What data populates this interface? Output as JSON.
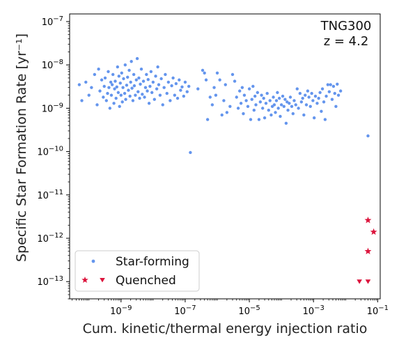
{
  "chart_data": {
    "type": "scatter",
    "xlabel": "Cum. kinetic/thermal energy injection ratio",
    "ylabel": "Specific Star Formation Rate [yr⁻¹]",
    "x_scale": "log",
    "y_scale": "log",
    "xlim": [
      2.5e-11,
      0.12
    ],
    "ylim": [
      4e-14,
      1.5e-07
    ],
    "x_ticks": [
      {
        "value": 1e-09,
        "mantissa": "10",
        "exp": "−9"
      },
      {
        "value": 1e-07,
        "mantissa": "10",
        "exp": "−7"
      },
      {
        "value": 1e-05,
        "mantissa": "10",
        "exp": "−5"
      },
      {
        "value": 0.001,
        "mantissa": "10",
        "exp": "−3"
      },
      {
        "value": 0.1,
        "mantissa": "10",
        "exp": "−1"
      }
    ],
    "y_ticks": [
      {
        "value": 1e-13,
        "mantissa": "10",
        "exp": "−13"
      },
      {
        "value": 1e-12,
        "mantissa": "10",
        "exp": "−12"
      },
      {
        "value": 1e-11,
        "mantissa": "10",
        "exp": "−11"
      },
      {
        "value": 1e-10,
        "mantissa": "10",
        "exp": "−10"
      },
      {
        "value": 1e-09,
        "mantissa": "10",
        "exp": "−9"
      },
      {
        "value": 1e-08,
        "mantissa": "10",
        "exp": "−8"
      },
      {
        "value": 1e-07,
        "mantissa": "10",
        "exp": "−7"
      }
    ],
    "annotation_lines": [
      "TNG300",
      "z = 4.2"
    ],
    "legend_position": "lower-left",
    "grid": false,
    "colors": {
      "star_forming": "#6495ed",
      "quenched": "#dc143c"
    },
    "series": [
      {
        "name": "Star-forming",
        "marker": "dot",
        "points": [
          [
            5e-11,
            3.5e-09
          ],
          [
            6e-11,
            1.5e-09
          ],
          [
            8e-11,
            4e-09
          ],
          [
            1e-10,
            2e-09
          ],
          [
            1.2e-10,
            3e-09
          ],
          [
            1.5e-10,
            6e-09
          ],
          [
            1.8e-10,
            1.2e-09
          ],
          [
            2e-10,
            8e-09
          ],
          [
            2.2e-10,
            2.5e-09
          ],
          [
            2.5e-10,
            4.5e-09
          ],
          [
            2.8e-10,
            1.8e-09
          ],
          [
            3e-10,
            3.2e-09
          ],
          [
            3.2e-10,
            5e-09
          ],
          [
            3.5e-10,
            1.5e-09
          ],
          [
            3.8e-10,
            2.2e-09
          ],
          [
            4e-10,
            7e-09
          ],
          [
            4.2e-10,
            3e-09
          ],
          [
            4.5e-10,
            1e-09
          ],
          [
            4.8e-10,
            4e-09
          ],
          [
            5e-10,
            2e-09
          ],
          [
            5.3e-10,
            3.5e-09
          ],
          [
            5.6e-10,
            6e-09
          ],
          [
            6e-10,
            1.3e-09
          ],
          [
            6.3e-10,
            2.8e-09
          ],
          [
            6.6e-10,
            4.2e-09
          ],
          [
            7e-10,
            1.7e-09
          ],
          [
            7.4e-10,
            3.1e-09
          ],
          [
            7.8e-10,
            9e-09
          ],
          [
            8.2e-10,
            2.3e-09
          ],
          [
            8.6e-10,
            5.5e-09
          ],
          [
            9e-10,
            1.1e-09
          ],
          [
            9.5e-10,
            3.8e-09
          ],
          [
            1e-09,
            2e-09
          ],
          [
            1.05e-09,
            6.5e-09
          ],
          [
            1.1e-09,
            1.4e-09
          ],
          [
            1.15e-09,
            3e-09
          ],
          [
            1.2e-09,
            4.8e-09
          ],
          [
            1.3e-09,
            2.2e-09
          ],
          [
            1.35e-09,
            1e-08
          ],
          [
            1.4e-09,
            1.6e-09
          ],
          [
            1.5e-09,
            3.4e-09
          ],
          [
            1.6e-09,
            5.2e-09
          ],
          [
            1.7e-09,
            2.6e-09
          ],
          [
            1.8e-09,
            7.5e-09
          ],
          [
            1.9e-09,
            1.9e-09
          ],
          [
            2e-09,
            4e-09
          ],
          [
            2.1e-09,
            1.2e-08
          ],
          [
            2.2e-09,
            2.9e-09
          ],
          [
            2.35e-09,
            1.5e-09
          ],
          [
            2.5e-09,
            6e-09
          ],
          [
            2.6e-09,
            3.3e-09
          ],
          [
            2.8e-09,
            2e-09
          ],
          [
            3e-09,
            4.5e-09
          ],
          [
            3.2e-09,
            1.4e-08
          ],
          [
            3.4e-09,
            2.4e-09
          ],
          [
            3.6e-09,
            5e-09
          ],
          [
            3.8e-09,
            1.7e-09
          ],
          [
            4e-09,
            3.6e-09
          ],
          [
            4.3e-09,
            8e-09
          ],
          [
            4.6e-09,
            2.1e-09
          ],
          [
            5e-09,
            4.2e-09
          ],
          [
            5.4e-09,
            1.8e-09
          ],
          [
            5.8e-09,
            3e-09
          ],
          [
            6.2e-09,
            6e-09
          ],
          [
            6.6e-09,
            2.5e-09
          ],
          [
            7e-09,
            4.6e-09
          ],
          [
            7.5e-09,
            1.3e-09
          ],
          [
            8e-09,
            3.2e-09
          ],
          [
            8.6e-09,
            7e-09
          ],
          [
            9.2e-09,
            2.3e-09
          ],
          [
            1e-08,
            4e-09
          ],
          [
            1.1e-08,
            1.6e-09
          ],
          [
            1.2e-08,
            5.5e-09
          ],
          [
            1.3e-08,
            2.8e-09
          ],
          [
            1.4e-08,
            9e-09
          ],
          [
            1.5e-08,
            3.5e-09
          ],
          [
            1.65e-08,
            2e-09
          ],
          [
            1.8e-08,
            4.8e-09
          ],
          [
            2e-08,
            1.2e-09
          ],
          [
            2.2e-08,
            3e-09
          ],
          [
            2.4e-08,
            6e-09
          ],
          [
            2.7e-08,
            2.2e-09
          ],
          [
            3e-08,
            4e-09
          ],
          [
            3.4e-08,
            1.5e-09
          ],
          [
            3.8e-08,
            3.3e-09
          ],
          [
            4.2e-08,
            5e-09
          ],
          [
            4.7e-08,
            2e-09
          ],
          [
            5.2e-08,
            3.7e-09
          ],
          [
            5.8e-08,
            1.7e-09
          ],
          [
            6.5e-08,
            4.5e-09
          ],
          [
            7.2e-08,
            2.6e-09
          ],
          [
            8e-08,
            3.1e-09
          ],
          [
            9e-08,
            1.9e-09
          ],
          [
            1e-07,
            4e-09
          ],
          [
            1.15e-07,
            2.4e-09
          ],
          [
            1.3e-07,
            3.2e-09
          ],
          [
            1.45e-07,
            9.5e-11
          ],
          [
            2.5e-07,
            2.8e-09
          ],
          [
            3.5e-07,
            7.5e-09
          ],
          [
            4e-07,
            6.5e-09
          ],
          [
            4.5e-07,
            4.5e-09
          ],
          [
            5e-07,
            5.5e-10
          ],
          [
            6e-07,
            1.8e-09
          ],
          [
            7e-07,
            1.2e-09
          ],
          [
            8e-07,
            3e-09
          ],
          [
            9e-07,
            2e-09
          ],
          [
            1e-06,
            6.5e-09
          ],
          [
            1.2e-06,
            4.5e-09
          ],
          [
            1.4e-06,
            7e-10
          ],
          [
            1.6e-06,
            1.5e-09
          ],
          [
            1.8e-06,
            3.5e-09
          ],
          [
            2e-06,
            8e-10
          ],
          [
            2.5e-06,
            1.1e-09
          ],
          [
            3e-06,
            6e-09
          ],
          [
            3.5e-06,
            4.2e-09
          ],
          [
            4e-06,
            1.8e-09
          ],
          [
            4.5e-06,
            1e-09
          ],
          [
            5e-06,
            2.5e-09
          ],
          [
            5.5e-06,
            1.3e-09
          ],
          [
            6e-06,
            3e-09
          ],
          [
            6.5e-06,
            7.5e-10
          ],
          [
            7e-06,
            2e-09
          ],
          [
            8e-06,
            1.5e-09
          ],
          [
            9e-06,
            1.1e-09
          ],
          [
            1e-05,
            2.8e-09
          ],
          [
            1.1e-05,
            5.5e-10
          ],
          [
            1.2e-05,
            1.6e-09
          ],
          [
            1.3e-05,
            3.2e-09
          ],
          [
            1.4e-05,
            9e-10
          ],
          [
            1.5e-05,
            1.9e-09
          ],
          [
            1.6e-05,
            1.2e-09
          ],
          [
            1.8e-05,
            2.3e-09
          ],
          [
            2e-05,
            5.5e-10
          ],
          [
            2.2e-05,
            1.4e-09
          ],
          [
            2.4e-05,
            2e-09
          ],
          [
            2.6e-05,
            1e-09
          ],
          [
            2.8e-05,
            1.7e-09
          ],
          [
            3e-05,
            6e-10
          ],
          [
            3.3e-05,
            1.3e-09
          ],
          [
            3.6e-05,
            2.2e-09
          ],
          [
            4e-05,
            9e-10
          ],
          [
            4.4e-05,
            1.5e-09
          ],
          [
            4.8e-05,
            7e-10
          ],
          [
            5.2e-05,
            1.1e-09
          ],
          [
            5.6e-05,
            1.8e-09
          ],
          [
            6e-05,
            1.2e-09
          ],
          [
            6.5e-05,
            8e-10
          ],
          [
            7e-05,
            1.5e-09
          ],
          [
            7.5e-05,
            2.3e-09
          ],
          [
            8e-05,
            1e-09
          ],
          [
            8.6e-05,
            1.7e-09
          ],
          [
            9.2e-05,
            6.5e-10
          ],
          [
            0.0001,
            1.2e-09
          ],
          [
            0.00011,
            1.9e-09
          ],
          [
            0.00012,
            1.1e-09
          ],
          [
            0.00013,
            1.6e-09
          ],
          [
            0.00014,
            4.5e-10
          ],
          [
            0.00015,
            1.4e-09
          ],
          [
            0.00016,
            9e-10
          ],
          [
            0.000175,
            1.3e-09
          ],
          [
            0.00019,
            1.8e-09
          ],
          [
            0.00021,
            1.1e-09
          ],
          [
            0.00023,
            7.5e-10
          ],
          [
            0.00025,
            1.5e-09
          ],
          [
            0.00028,
            1.2e-09
          ],
          [
            0.00031,
            2.8e-09
          ],
          [
            0.00034,
            1e-09
          ],
          [
            0.00038,
            2.2e-09
          ],
          [
            0.00042,
            1.4e-09
          ],
          [
            0.00046,
            1.7e-09
          ],
          [
            0.0005,
            7e-10
          ],
          [
            0.00055,
            2e-09
          ],
          [
            0.0006,
            1.2e-09
          ],
          [
            0.00066,
            2.5e-09
          ],
          [
            0.00072,
            1.8e-09
          ],
          [
            0.0008,
            1.1e-09
          ],
          [
            0.00088,
            2.2e-09
          ],
          [
            0.00096,
            1.5e-09
          ],
          [
            0.00105,
            6e-10
          ],
          [
            0.00115,
            1.9e-09
          ],
          [
            0.0013,
            1.3e-09
          ],
          [
            0.00145,
            1.7e-09
          ],
          [
            0.0016,
            2.3e-09
          ],
          [
            0.00175,
            8.5e-10
          ],
          [
            0.0019,
            2.8e-09
          ],
          [
            0.0021,
            1.4e-09
          ],
          [
            0.0023,
            5.5e-10
          ],
          [
            0.0025,
            1.9e-09
          ],
          [
            0.0028,
            3.5e-09
          ],
          [
            0.0031,
            2.4e-09
          ],
          [
            0.0034,
            3.5e-09
          ],
          [
            0.0038,
            1.6e-09
          ],
          [
            0.0042,
            3.2e-09
          ],
          [
            0.0046,
            2.2e-09
          ],
          [
            0.005,
            1.1e-09
          ],
          [
            0.0055,
            3.6e-09
          ],
          [
            0.006,
            2e-09
          ],
          [
            0.007,
            2.5e-09
          ],
          [
            0.05,
            2.3e-10
          ]
        ]
      },
      {
        "name": "Quenched",
        "marker": "star-and-triangle",
        "points": [
          {
            "x": 0.05,
            "y": 2.6e-12,
            "marker": "star"
          },
          {
            "x": 0.075,
            "y": 1.4e-12,
            "marker": "star"
          },
          {
            "x": 0.05,
            "y": 5e-13,
            "marker": "star"
          },
          {
            "x": 0.027,
            "y": 1e-13,
            "marker": "triangle-down"
          },
          {
            "x": 0.05,
            "y": 1e-13,
            "marker": "triangle-down"
          }
        ]
      }
    ]
  }
}
